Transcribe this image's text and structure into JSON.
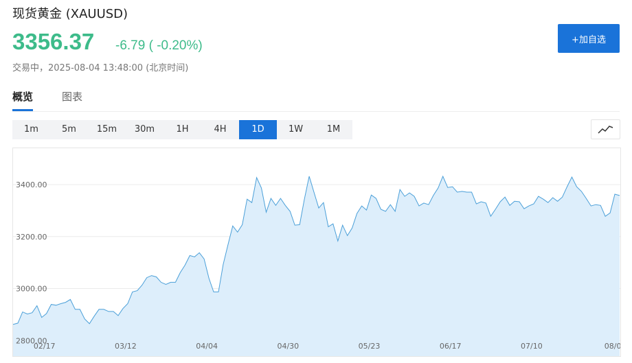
{
  "header": {
    "title": "现货黄金 (XAUUSD)",
    "price": "3356.37",
    "change": "-6.79 ( -0.20%)",
    "status": "交易中，2025-08-04 13:48:00 (北京时间)",
    "watch_button": "+加自选"
  },
  "tabs": [
    "概览",
    "图表"
  ],
  "active_tab": 0,
  "ranges": [
    "1m",
    "5m",
    "15m",
    "30m",
    "1H",
    "4H",
    "1D",
    "1W",
    "1M"
  ],
  "active_range": "1D",
  "chart_data": {
    "type": "area",
    "color": "#4a9fd8",
    "fill": "#ddeefb",
    "categories": [
      null,
      null,
      null,
      null,
      null,
      null,
      "02/17",
      null,
      null,
      null,
      null,
      null,
      null,
      null,
      null,
      null,
      null,
      null,
      null,
      null,
      null,
      null,
      null,
      "03/12",
      null,
      null,
      null,
      null,
      null,
      null,
      null,
      null,
      null,
      null,
      null,
      null,
      null,
      null,
      null,
      null,
      "04/04",
      null,
      null,
      null,
      null,
      null,
      null,
      null,
      null,
      null,
      null,
      null,
      null,
      null,
      null,
      null,
      null,
      "04/30",
      null,
      null,
      null,
      null,
      null,
      null,
      null,
      null,
      null,
      null,
      null,
      null,
      null,
      null,
      null,
      null,
      "05/23",
      null,
      null,
      null,
      null,
      null,
      null,
      null,
      null,
      null,
      null,
      null,
      null,
      null,
      null,
      null,
      null,
      "06/17",
      null,
      null,
      null,
      null,
      null,
      null,
      null,
      null,
      null,
      null,
      null,
      null,
      null,
      null,
      null,
      null,
      "07/10",
      null,
      null,
      null,
      null,
      null,
      null,
      null,
      null,
      null,
      null,
      null,
      null,
      null,
      null,
      null,
      null,
      "08/0",
      null,
      null
    ],
    "values": [
      2862,
      2867,
      2910,
      2902,
      2907,
      2934,
      2889,
      2904,
      2939,
      2936,
      2942,
      2947,
      2958,
      2920,
      2920,
      2883,
      2865,
      2894,
      2920,
      2920,
      2912,
      2912,
      2896,
      2923,
      2942,
      2987,
      2992,
      3013,
      3042,
      3050,
      3045,
      3024,
      3016,
      3024,
      3024,
      3061,
      3090,
      3127,
      3122,
      3138,
      3114,
      3040,
      2987,
      2987,
      3093,
      3169,
      3241,
      3217,
      3246,
      3344,
      3331,
      3427,
      3387,
      3294,
      3347,
      3320,
      3347,
      3320,
      3297,
      3244,
      3246,
      3344,
      3432,
      3371,
      3310,
      3331,
      3238,
      3249,
      3183,
      3244,
      3204,
      3233,
      3289,
      3318,
      3302,
      3360,
      3347,
      3305,
      3297,
      3323,
      3297,
      3381,
      3355,
      3368,
      3355,
      3318,
      3329,
      3323,
      3358,
      3387,
      3432,
      3389,
      3392,
      3371,
      3374,
      3371,
      3371,
      3326,
      3334,
      3329,
      3278,
      3305,
      3334,
      3352,
      3320,
      3336,
      3334,
      3307,
      3318,
      3326,
      3355,
      3344,
      3331,
      3350,
      3336,
      3352,
      3392,
      3429,
      3392,
      3374,
      3347,
      3318,
      3323,
      3320,
      3278,
      3291,
      3363,
      3358
    ],
    "ylim": [
      2740,
      3540
    ],
    "yticks": [
      {
        "value": 2800,
        "label": "2800.00"
      },
      {
        "value": 3000,
        "label": "3000.00"
      },
      {
        "value": 3200,
        "label": "3200.00"
      },
      {
        "value": 3400,
        "label": "3400.00"
      }
    ],
    "grid": true
  }
}
